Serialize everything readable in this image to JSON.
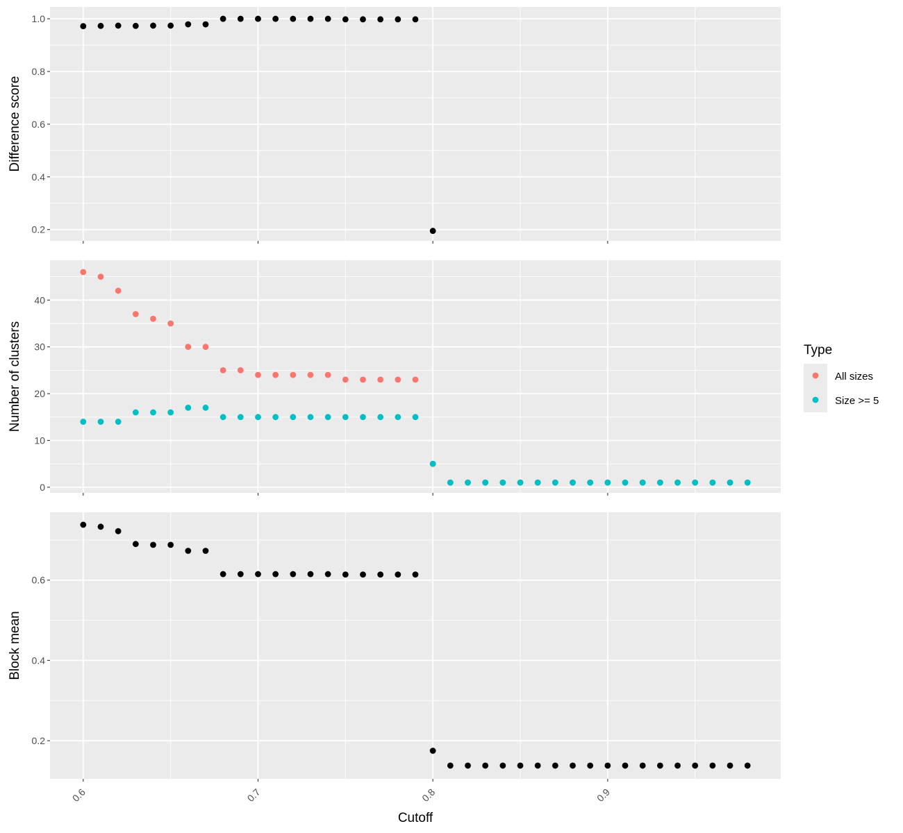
{
  "chart_data": {
    "type": "scatter",
    "xlabel": "Cutoff",
    "xlim": [
      0.581,
      0.999
    ],
    "x_ticks": [
      0.6,
      0.7,
      0.8,
      0.9
    ],
    "x_tick_labels": [
      "0.6",
      "0.7",
      "0.8",
      "0.9"
    ],
    "grid": true,
    "legend": {
      "title": "Type",
      "position": "right",
      "entries": [
        {
          "label": "All sizes",
          "color": "#F8766D"
        },
        {
          "label": "Size >= 5",
          "color": "#00BFC4"
        }
      ]
    },
    "panels": [
      {
        "ylabel": "Difference score",
        "ylim": [
          0.157,
          1.045
        ],
        "y_ticks": [
          0.2,
          0.4,
          0.6,
          0.8,
          1.0
        ],
        "y_tick_labels": [
          "0.2",
          "0.4",
          "0.6",
          "0.8",
          "1.0"
        ],
        "series": [
          {
            "color": "#000000",
            "x": [
              0.6,
              0.61,
              0.62,
              0.63,
              0.64,
              0.65,
              0.66,
              0.67,
              0.68,
              0.69,
              0.7,
              0.71,
              0.72,
              0.73,
              0.74,
              0.75,
              0.76,
              0.77,
              0.78,
              0.79,
              0.8
            ],
            "y": [
              0.972,
              0.973,
              0.974,
              0.973,
              0.974,
              0.974,
              0.979,
              0.979,
              1.0,
              1.0,
              1.0,
              1.0,
              1.0,
              1.0,
              1.0,
              0.998,
              0.998,
              0.998,
              0.998,
              0.998,
              0.195
            ]
          }
        ]
      },
      {
        "ylabel": "Number of clusters",
        "ylim": [
          -1.2,
          48.5
        ],
        "y_ticks": [
          0,
          10,
          20,
          30,
          40
        ],
        "y_tick_labels": [
          "0",
          "10",
          "20",
          "30",
          "40"
        ],
        "series": [
          {
            "name": "All sizes",
            "color": "#F8766D",
            "x": [
              0.6,
              0.61,
              0.62,
              0.63,
              0.64,
              0.65,
              0.66,
              0.67,
              0.68,
              0.69,
              0.7,
              0.71,
              0.72,
              0.73,
              0.74,
              0.75,
              0.76,
              0.77,
              0.78,
              0.79,
              0.8,
              0.81,
              0.82,
              0.83,
              0.84,
              0.85,
              0.86,
              0.87,
              0.88,
              0.89,
              0.9,
              0.91,
              0.92,
              0.93,
              0.94,
              0.95,
              0.96,
              0.97,
              0.98
            ],
            "y": [
              46,
              45,
              42,
              37,
              36,
              35,
              30,
              30,
              25,
              25,
              24,
              24,
              24,
              24,
              24,
              23,
              23,
              23,
              23,
              23,
              5,
              1,
              1,
              1,
              1,
              1,
              1,
              1,
              1,
              1,
              1,
              1,
              1,
              1,
              1,
              1,
              1,
              1,
              1
            ]
          },
          {
            "name": "Size >= 5",
            "color": "#00BFC4",
            "x": [
              0.6,
              0.61,
              0.62,
              0.63,
              0.64,
              0.65,
              0.66,
              0.67,
              0.68,
              0.69,
              0.7,
              0.71,
              0.72,
              0.73,
              0.74,
              0.75,
              0.76,
              0.77,
              0.78,
              0.79,
              0.8,
              0.81,
              0.82,
              0.83,
              0.84,
              0.85,
              0.86,
              0.87,
              0.88,
              0.89,
              0.9,
              0.91,
              0.92,
              0.93,
              0.94,
              0.95,
              0.96,
              0.97,
              0.98
            ],
            "y": [
              14,
              14,
              14,
              16,
              16,
              16,
              17,
              17,
              15,
              15,
              15,
              15,
              15,
              15,
              15,
              15,
              15,
              15,
              15,
              15,
              5,
              1,
              1,
              1,
              1,
              1,
              1,
              1,
              1,
              1,
              1,
              1,
              1,
              1,
              1,
              1,
              1,
              1,
              1
            ]
          }
        ]
      },
      {
        "ylabel": "Block mean",
        "ylim": [
          0.105,
          0.769
        ],
        "y_ticks": [
          0.2,
          0.4,
          0.6
        ],
        "y_tick_labels": [
          "0.2",
          "0.4",
          "0.6"
        ],
        "series": [
          {
            "color": "#000000",
            "x": [
              0.6,
              0.61,
              0.62,
              0.63,
              0.64,
              0.65,
              0.66,
              0.67,
              0.68,
              0.69,
              0.7,
              0.71,
              0.72,
              0.73,
              0.74,
              0.75,
              0.76,
              0.77,
              0.78,
              0.79,
              0.8,
              0.81,
              0.82,
              0.83,
              0.84,
              0.85,
              0.86,
              0.87,
              0.88,
              0.89,
              0.9,
              0.91,
              0.92,
              0.93,
              0.94,
              0.95,
              0.96,
              0.97,
              0.98
            ],
            "y": [
              0.738,
              0.733,
              0.722,
              0.69,
              0.688,
              0.688,
              0.673,
              0.673,
              0.615,
              0.615,
              0.615,
              0.615,
              0.615,
              0.615,
              0.615,
              0.614,
              0.614,
              0.614,
              0.614,
              0.614,
              0.175,
              0.138,
              0.138,
              0.138,
              0.138,
              0.138,
              0.138,
              0.138,
              0.138,
              0.138,
              0.138,
              0.138,
              0.138,
              0.138,
              0.138,
              0.138,
              0.138,
              0.138,
              0.138
            ]
          }
        ]
      }
    ]
  }
}
